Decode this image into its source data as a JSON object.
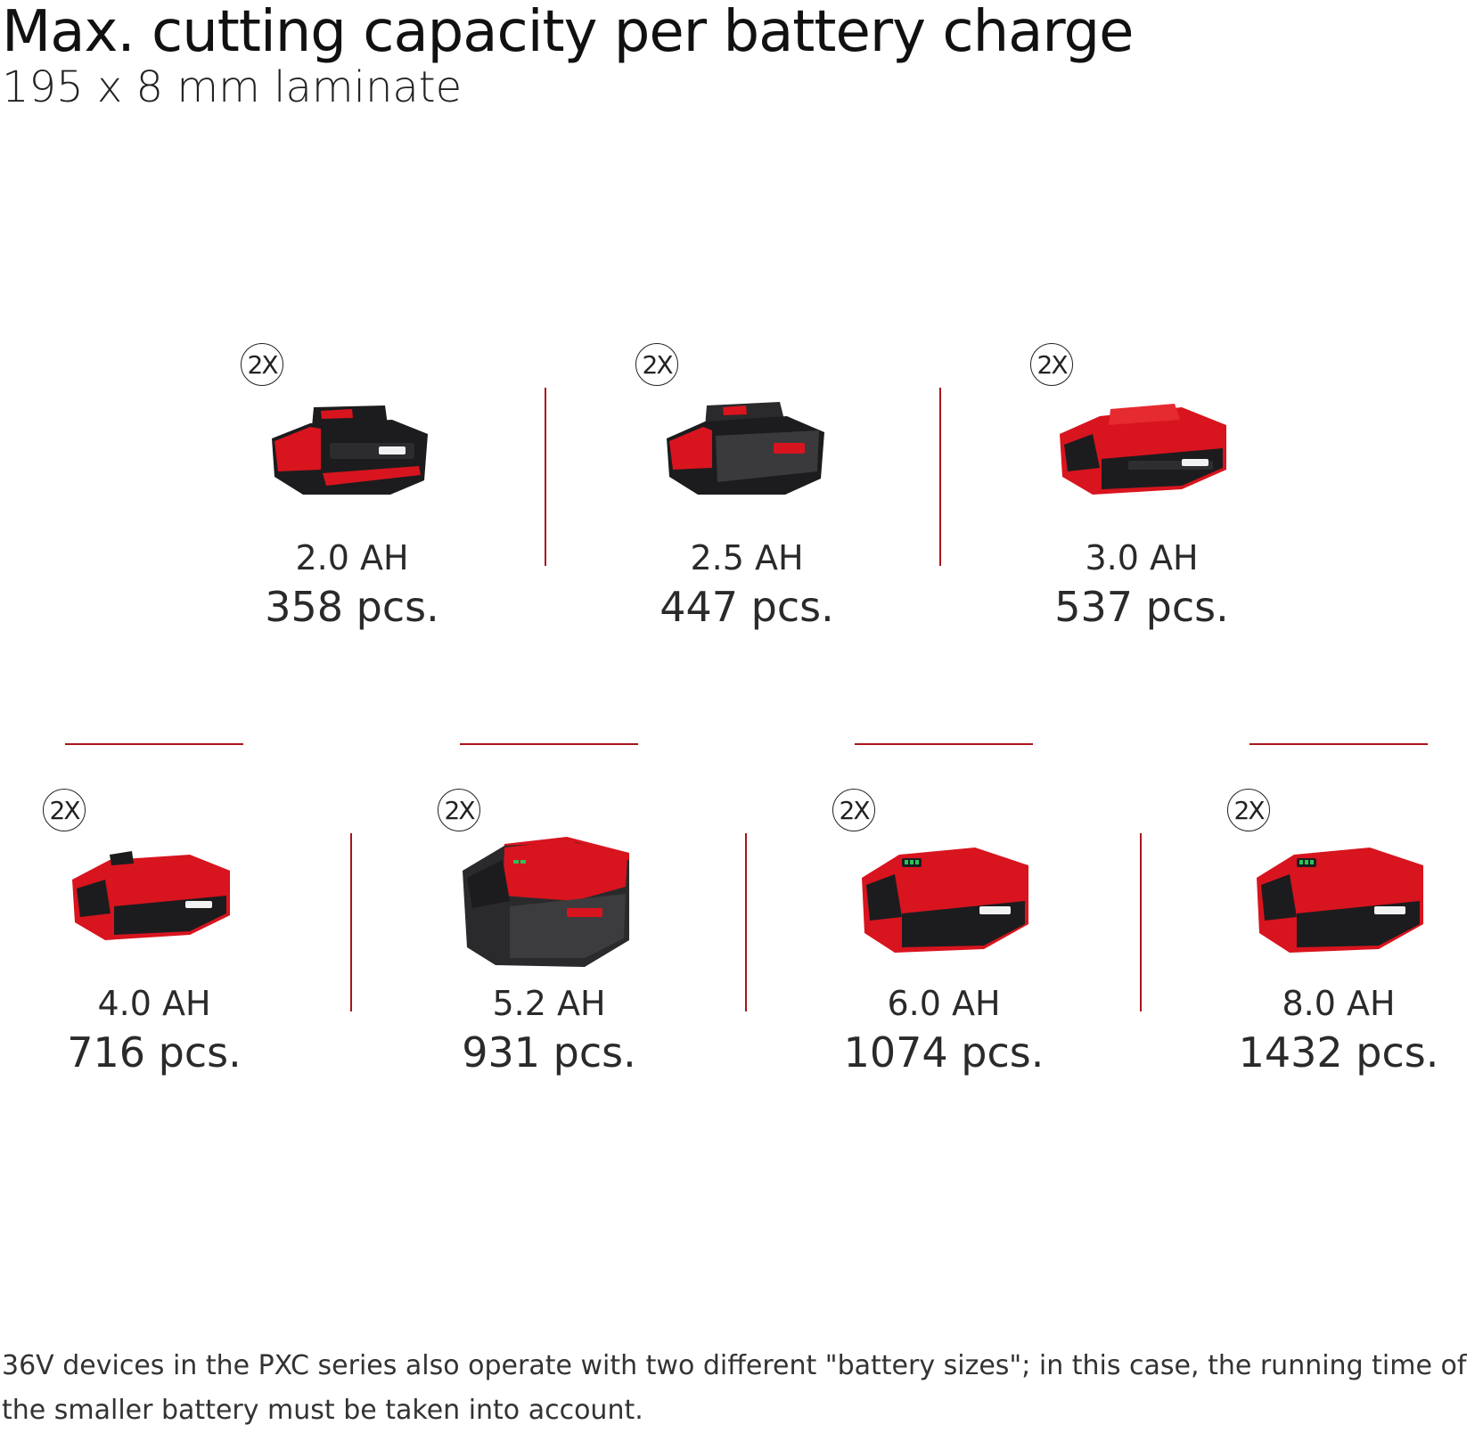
{
  "header": {
    "title": "Max. cutting capacity per battery charge",
    "subtitle": "195 x 8 mm laminate"
  },
  "batteries": [
    {
      "badge": "2X",
      "capacity": "2.0 AH",
      "pieces": "358 pcs.",
      "style": "black-compact"
    },
    {
      "badge": "2X",
      "capacity": "2.5 AH",
      "pieces": "447 pcs.",
      "style": "black-compact"
    },
    {
      "badge": "2X",
      "capacity": "3.0 AH",
      "pieces": "537 pcs.",
      "style": "red-compact"
    },
    {
      "badge": "2X",
      "capacity": "4.0 AH",
      "pieces": "716 pcs.",
      "style": "red-compact"
    },
    {
      "badge": "2X",
      "capacity": "5.2 AH",
      "pieces": "931 pcs.",
      "style": "black-large"
    },
    {
      "badge": "2X",
      "capacity": "6.0 AH",
      "pieces": "1074 pcs.",
      "style": "red-large"
    },
    {
      "badge": "2X",
      "capacity": "8.0 AH",
      "pieces": "1432 pcs.",
      "style": "red-large"
    }
  ],
  "footer": {
    "note": "36V devices in the PXC series also operate with two different \"battery sizes\"; in this case, the running time of the smaller battery must be taken into account."
  },
  "colors": {
    "divider": "#a8141b",
    "battery_red": "#d8141e",
    "battery_black": "#1c1c1e"
  }
}
